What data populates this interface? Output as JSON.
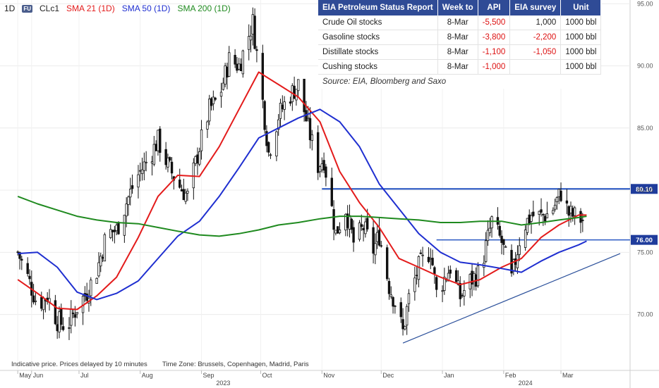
{
  "legend": {
    "timeframe": "1D",
    "badge": "FU",
    "symbol": "CLc1",
    "sma21": "SMA 21 (1D)",
    "sma50": "SMA 50 (1D)",
    "sma200": "SMA 200 (1D)"
  },
  "footer_note": "Indicative price. Prices delayed by 10 minutes",
  "timezone": "Time Zone: Brussels, Copenhagen, Madrid, Paris",
  "table": {
    "headers": [
      "EIA Petroleum Status Report",
      "Week to",
      "API",
      "EIA survey",
      "Unit"
    ],
    "rows": [
      [
        "Crude Oil stocks",
        "8-Mar",
        "-5,500",
        "1,000",
        "1000 bbl"
      ],
      [
        "Gasoline stocks",
        "8-Mar",
        "-3,800",
        "-2,200",
        "1000 bbl"
      ],
      [
        "Distillate stocks",
        "8-Mar",
        "-1,100",
        "-1,050",
        "1000 bbl"
      ],
      [
        "Cushing stocks",
        "8-Mar",
        "-1,000",
        "",
        "1000 bbl"
      ]
    ],
    "source": "Source: EIA, Bloomberg and Saxo"
  },
  "colors": {
    "sma21": "#e31b1b",
    "sma50": "#1f2fd0",
    "sma200": "#1f8a1f",
    "levels": "#1f4fbf",
    "trendline": "#2a4f9a",
    "candles": "#111111"
  },
  "chart_data": {
    "type": "line",
    "instrument": "CLc1",
    "ylim": [
      65.5,
      95.3
    ],
    "y_ticks": [
      "95.00",
      "90.00",
      "85.00",
      "80.00",
      "75.00",
      "70.00"
    ],
    "x_months": [
      {
        "label": "May",
        "date": "2023-05-31"
      },
      {
        "label": "Jun",
        "date": "2023-06-07"
      },
      {
        "label": "Jul",
        "date": "2023-07-01"
      },
      {
        "label": "Aug",
        "date": "2023-08-01"
      },
      {
        "label": "Sep",
        "date": "2023-09-01"
      },
      {
        "label": "Oct",
        "date": "2023-10-01"
      },
      {
        "label": "Nov",
        "date": "2023-11-01"
      },
      {
        "label": "Dec",
        "date": "2023-12-01"
      },
      {
        "label": "Jan",
        "date": "2024-01-01"
      },
      {
        "label": "Feb",
        "date": "2024-02-01"
      },
      {
        "label": "Mar",
        "date": "2024-03-01"
      }
    ],
    "year_labels": [
      {
        "label": "2023",
        "date": "2023-09-12"
      },
      {
        "label": "2024",
        "date": "2024-02-12"
      }
    ],
    "levels": [
      {
        "label": "80.10",
        "value": 80.1,
        "from": "2023-11-01"
      },
      {
        "label": "76.00",
        "value": 76.0,
        "from": "2023-12-29"
      }
    ],
    "trendline": {
      "from": [
        "2023-12-12",
        67.7
      ],
      "to": [
        "2024-03-31",
        74.9
      ]
    },
    "price": [
      [
        "2023-05-31",
        75.0
      ],
      [
        "2023-06-05",
        73.0
      ],
      [
        "2023-06-10",
        70.8
      ],
      [
        "2023-06-15",
        71.5
      ],
      [
        "2023-06-20",
        69.5
      ],
      [
        "2023-06-25",
        69.0
      ],
      [
        "2023-06-30",
        70.6
      ],
      [
        "2023-07-05",
        71.8
      ],
      [
        "2023-07-10",
        73.5
      ],
      [
        "2023-07-15",
        76.5
      ],
      [
        "2023-07-20",
        76.8
      ],
      [
        "2023-07-25",
        79.0
      ],
      [
        "2023-07-30",
        81.0
      ],
      [
        "2023-08-05",
        82.5
      ],
      [
        "2023-08-10",
        84.0
      ],
      [
        "2023-08-15",
        82.0
      ],
      [
        "2023-08-20",
        80.5
      ],
      [
        "2023-08-25",
        79.5
      ],
      [
        "2023-08-31",
        83.5
      ],
      [
        "2023-09-05",
        86.5
      ],
      [
        "2023-09-10",
        87.5
      ],
      [
        "2023-09-15",
        90.5
      ],
      [
        "2023-09-20",
        90.0
      ],
      [
        "2023-09-27",
        93.5
      ],
      [
        "2023-10-01",
        88.5
      ],
      [
        "2023-10-05",
        83.0
      ],
      [
        "2023-10-10",
        86.0
      ],
      [
        "2023-10-15",
        87.5
      ],
      [
        "2023-10-20",
        88.5
      ],
      [
        "2023-10-25",
        85.0
      ],
      [
        "2023-10-30",
        82.0
      ],
      [
        "2023-11-02",
        82.5
      ],
      [
        "2023-11-08",
        76.5
      ],
      [
        "2023-11-13",
        78.5
      ],
      [
        "2023-11-17",
        75.8
      ],
      [
        "2023-11-22",
        77.0
      ],
      [
        "2023-11-27",
        75.2
      ],
      [
        "2023-11-30",
        76.4
      ],
      [
        "2023-12-05",
        72.3
      ],
      [
        "2023-12-08",
        71.0
      ],
      [
        "2023-12-12",
        68.6
      ],
      [
        "2023-12-15",
        71.3
      ],
      [
        "2023-12-20",
        73.8
      ],
      [
        "2023-12-26",
        75.2
      ],
      [
        "2023-12-29",
        71.7
      ],
      [
        "2024-01-05",
        73.8
      ],
      [
        "2024-01-10",
        71.4
      ],
      [
        "2024-01-15",
        72.7
      ],
      [
        "2024-01-20",
        73.4
      ],
      [
        "2024-01-26",
        77.5
      ],
      [
        "2024-01-31",
        75.8
      ],
      [
        "2024-02-05",
        72.8
      ],
      [
        "2024-02-10",
        76.8
      ],
      [
        "2024-02-15",
        78.0
      ],
      [
        "2024-02-20",
        77.9
      ],
      [
        "2024-02-25",
        78.2
      ],
      [
        "2024-03-01",
        79.8
      ],
      [
        "2024-03-05",
        78.1
      ],
      [
        "2024-03-08",
        77.9
      ],
      [
        "2024-03-12",
        77.6
      ]
    ],
    "series": [
      {
        "name": "SMA 21 (1D)",
        "points": [
          [
            "2023-05-31",
            72.8
          ],
          [
            "2023-06-10",
            71.7
          ],
          [
            "2023-06-20",
            70.5
          ],
          [
            "2023-06-30",
            70.4
          ],
          [
            "2023-07-10",
            71.5
          ],
          [
            "2023-07-20",
            73.0
          ],
          [
            "2023-07-31",
            76.2
          ],
          [
            "2023-08-10",
            79.5
          ],
          [
            "2023-08-20",
            81.2
          ],
          [
            "2023-08-31",
            81.1
          ],
          [
            "2023-09-10",
            83.5
          ],
          [
            "2023-09-20",
            86.5
          ],
          [
            "2023-09-30",
            89.5
          ],
          [
            "2023-10-10",
            88.5
          ],
          [
            "2023-10-20",
            87.5
          ],
          [
            "2023-10-31",
            85.5
          ],
          [
            "2023-11-10",
            81.5
          ],
          [
            "2023-11-20",
            79.0
          ],
          [
            "2023-11-30",
            77.0
          ],
          [
            "2023-12-10",
            74.5
          ],
          [
            "2023-12-20",
            73.8
          ],
          [
            "2023-12-31",
            73.0
          ],
          [
            "2024-01-10",
            72.4
          ],
          [
            "2024-01-20",
            72.8
          ],
          [
            "2024-01-31",
            73.8
          ],
          [
            "2024-02-10",
            74.5
          ],
          [
            "2024-02-20",
            76.2
          ],
          [
            "2024-02-29",
            77.2
          ],
          [
            "2024-03-10",
            78.0
          ],
          [
            "2024-03-14",
            78.0
          ]
        ]
      },
      {
        "name": "SMA 50 (1D)",
        "points": [
          [
            "2023-05-31",
            74.9
          ],
          [
            "2023-06-10",
            75.0
          ],
          [
            "2023-06-20",
            73.8
          ],
          [
            "2023-06-30",
            71.8
          ],
          [
            "2023-07-10",
            71.2
          ],
          [
            "2023-07-20",
            71.7
          ],
          [
            "2023-07-31",
            72.7
          ],
          [
            "2023-08-10",
            74.5
          ],
          [
            "2023-08-20",
            76.3
          ],
          [
            "2023-08-31",
            77.5
          ],
          [
            "2023-09-10",
            79.5
          ],
          [
            "2023-09-20",
            81.8
          ],
          [
            "2023-09-30",
            84.2
          ],
          [
            "2023-10-10",
            85.0
          ],
          [
            "2023-10-20",
            85.8
          ],
          [
            "2023-10-31",
            86.5
          ],
          [
            "2023-11-10",
            85.5
          ],
          [
            "2023-11-20",
            83.5
          ],
          [
            "2023-11-30",
            80.5
          ],
          [
            "2023-12-10",
            78.5
          ],
          [
            "2023-12-20",
            76.5
          ],
          [
            "2023-12-31",
            75.0
          ],
          [
            "2024-01-10",
            74.2
          ],
          [
            "2024-01-20",
            74.0
          ],
          [
            "2024-01-31",
            73.7
          ],
          [
            "2024-02-10",
            73.4
          ],
          [
            "2024-02-20",
            74.3
          ],
          [
            "2024-02-29",
            75.0
          ],
          [
            "2024-03-10",
            75.6
          ],
          [
            "2024-03-14",
            75.9
          ]
        ]
      },
      {
        "name": "SMA 200 (1D)",
        "points": [
          [
            "2023-05-31",
            79.5
          ],
          [
            "2023-06-10",
            78.9
          ],
          [
            "2023-06-20",
            78.4
          ],
          [
            "2023-06-30",
            77.9
          ],
          [
            "2023-07-10",
            77.6
          ],
          [
            "2023-07-20",
            77.4
          ],
          [
            "2023-07-31",
            77.3
          ],
          [
            "2023-08-10",
            77.0
          ],
          [
            "2023-08-20",
            76.7
          ],
          [
            "2023-08-31",
            76.4
          ],
          [
            "2023-09-10",
            76.3
          ],
          [
            "2023-09-20",
            76.5
          ],
          [
            "2023-09-30",
            76.8
          ],
          [
            "2023-10-10",
            77.2
          ],
          [
            "2023-10-20",
            77.4
          ],
          [
            "2023-10-31",
            77.7
          ],
          [
            "2023-11-10",
            77.9
          ],
          [
            "2023-11-20",
            77.9
          ],
          [
            "2023-11-30",
            77.8
          ],
          [
            "2023-12-10",
            77.7
          ],
          [
            "2023-12-20",
            77.6
          ],
          [
            "2023-12-31",
            77.4
          ],
          [
            "2024-01-10",
            77.4
          ],
          [
            "2024-01-20",
            77.5
          ],
          [
            "2024-01-31",
            77.5
          ],
          [
            "2024-02-10",
            77.2
          ],
          [
            "2024-02-20",
            77.4
          ],
          [
            "2024-02-29",
            77.6
          ],
          [
            "2024-03-10",
            77.8
          ],
          [
            "2024-03-14",
            77.9
          ]
        ]
      }
    ]
  }
}
